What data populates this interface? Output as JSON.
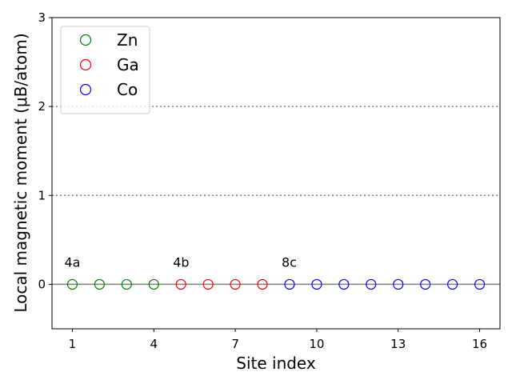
{
  "chart_data": {
    "type": "scatter",
    "xlabel": "Site index",
    "ylabel": "Local magnetic moment (μB/atom)",
    "xlim": [
      0.25,
      16.75
    ],
    "ylim": [
      -0.5,
      3
    ],
    "xticks": [
      1,
      4,
      7,
      10,
      13,
      16
    ],
    "yticks": [
      0,
      1,
      2,
      3
    ],
    "legend": "upper left",
    "marker": "hollow-circle",
    "reference_lines": {
      "solid": [
        0
      ],
      "dotted": [
        1,
        2
      ]
    },
    "annotations": [
      "4a",
      "4b",
      "8c"
    ],
    "series": [
      {
        "name": "Zn",
        "color": "#008000",
        "x": [
          1,
          2,
          3,
          4
        ],
        "values": [
          0,
          0,
          0,
          0
        ]
      },
      {
        "name": "Ga",
        "color": "#ff0000",
        "x": [
          5,
          6,
          7,
          8
        ],
        "values": [
          0,
          0,
          0,
          0
        ]
      },
      {
        "name": "Co",
        "color": "#0000ff",
        "x": [
          9,
          10,
          11,
          12,
          13,
          14,
          15,
          16
        ],
        "values": [
          0,
          0,
          0,
          0,
          0,
          0,
          0,
          0
        ]
      }
    ]
  }
}
